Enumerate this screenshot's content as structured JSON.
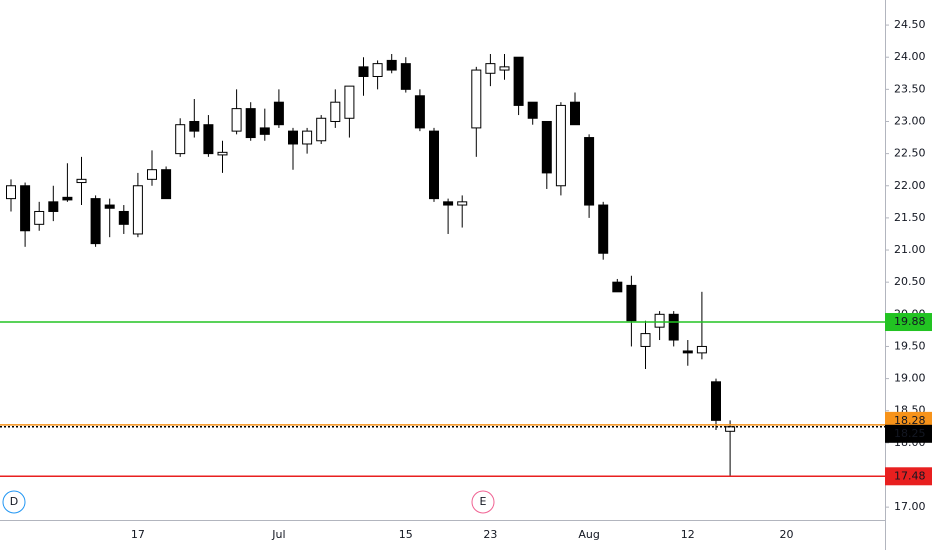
{
  "chart_data": {
    "type": "candlestick",
    "categories": [
      null,
      null,
      null,
      null,
      null,
      null,
      null,
      null,
      null,
      "17",
      null,
      null,
      null,
      null,
      null,
      null,
      null,
      null,
      null,
      "Jul",
      null,
      null,
      null,
      null,
      null,
      null,
      null,
      null,
      "15",
      null,
      null,
      null,
      null,
      null,
      "23",
      null,
      null,
      null,
      null,
      null,
      null,
      "Aug",
      null,
      null,
      null,
      null,
      null,
      null,
      "12",
      null,
      null,
      null,
      null,
      null,
      null,
      "20",
      null,
      null,
      null,
      null,
      null,
      null
    ],
    "open": [
      21.8,
      22.0,
      21.4,
      21.75,
      21.82,
      22.05,
      21.8,
      21.7,
      21.6,
      21.25,
      22.1,
      22.25,
      22.5,
      23.0,
      22.95,
      22.48,
      22.85,
      23.2,
      22.9,
      23.3,
      22.85,
      22.65,
      22.7,
      23.0,
      23.05,
      23.85,
      23.7,
      23.95,
      23.9,
      23.4,
      22.85,
      21.75,
      21.7,
      22.9,
      23.75,
      23.8,
      24.0,
      23.3,
      23.0,
      22.0,
      23.3,
      22.75,
      21.7,
      20.5,
      20.45,
      19.5,
      19.8,
      20.0,
      19.43,
      19.4,
      18.95,
      18.18,
      null,
      null,
      null,
      null,
      null,
      null,
      null,
      null,
      null,
      null
    ],
    "high": [
      22.1,
      22.05,
      21.75,
      22.0,
      22.35,
      22.45,
      21.85,
      21.8,
      21.7,
      22.2,
      22.55,
      22.3,
      23.05,
      23.35,
      23.1,
      22.7,
      23.5,
      23.3,
      23.2,
      23.5,
      22.9,
      22.9,
      23.1,
      23.5,
      23.55,
      24.0,
      23.95,
      24.05,
      24.0,
      23.5,
      22.9,
      21.8,
      21.85,
      23.85,
      24.05,
      24.05,
      24.0,
      23.3,
      23.0,
      23.3,
      23.45,
      22.8,
      21.75,
      20.55,
      20.6,
      19.9,
      20.05,
      20.05,
      19.6,
      20.35,
      19.0,
      18.35,
      null,
      null,
      null,
      null,
      null,
      null,
      null,
      null,
      null,
      null
    ],
    "low": [
      21.6,
      21.05,
      21.3,
      21.45,
      21.75,
      21.7,
      21.05,
      21.2,
      21.25,
      21.2,
      22.0,
      21.8,
      22.45,
      22.75,
      22.45,
      22.2,
      22.8,
      22.7,
      22.7,
      22.9,
      22.25,
      22.5,
      22.65,
      22.9,
      22.75,
      23.4,
      23.5,
      23.75,
      23.45,
      22.85,
      21.75,
      21.25,
      21.35,
      22.45,
      23.55,
      23.65,
      23.1,
      22.95,
      21.95,
      21.85,
      22.95,
      21.5,
      20.85,
      20.35,
      19.5,
      19.15,
      19.6,
      19.5,
      19.2,
      19.3,
      18.2,
      17.48,
      null,
      null,
      null,
      null,
      null,
      null,
      null,
      null,
      null,
      null
    ],
    "close": [
      22.0,
      21.3,
      21.6,
      21.6,
      21.78,
      22.1,
      21.1,
      21.65,
      21.4,
      22.0,
      22.25,
      21.8,
      22.95,
      22.85,
      22.5,
      22.52,
      23.2,
      22.75,
      22.8,
      22.95,
      22.65,
      22.85,
      23.05,
      23.3,
      23.55,
      23.7,
      23.9,
      23.8,
      23.5,
      22.9,
      21.8,
      21.7,
      21.75,
      23.8,
      23.9,
      23.85,
      23.25,
      23.05,
      22.2,
      23.25,
      22.95,
      21.7,
      20.95,
      20.35,
      19.9,
      19.7,
      20.0,
      19.6,
      19.4,
      19.5,
      18.35,
      18.25,
      null,
      null,
      null,
      null,
      null,
      null,
      null,
      null,
      null,
      null
    ],
    "up_color": "#ffffff",
    "down_color": "#000000",
    "ylim": [
      16.8,
      24.89
    ],
    "yticks": [
      {
        "value": 17,
        "label": "17.00"
      },
      {
        "value": 17.5,
        "label": "17.50"
      },
      {
        "value": 18,
        "label": "18.00"
      },
      {
        "value": 18.5,
        "label": "18.50"
      },
      {
        "value": 19,
        "label": "19.00"
      },
      {
        "value": 19.5,
        "label": "19.50"
      },
      {
        "value": 20,
        "label": "20.00"
      },
      {
        "value": 20.5,
        "label": "20.50"
      },
      {
        "value": 21,
        "label": "21.00"
      },
      {
        "value": 21.5,
        "label": "21.50"
      },
      {
        "value": 22,
        "label": "22.00"
      },
      {
        "value": 22.5,
        "label": "22.50"
      },
      {
        "value": 23,
        "label": "23.00"
      },
      {
        "value": 23.5,
        "label": "23.50"
      },
      {
        "value": 24,
        "label": "24.00"
      },
      {
        "value": 24.5,
        "label": "24.50"
      }
    ],
    "levels": [
      {
        "value": 19.88,
        "color": "#22c322"
      },
      {
        "value": 17.48,
        "color": "#e81f1f"
      },
      {
        "value": 18.28,
        "color": "#f7931a"
      },
      {
        "value": 18.25,
        "color": "#000000",
        "style": "dotted"
      }
    ],
    "events": [
      "D",
      "E"
    ]
  }
}
